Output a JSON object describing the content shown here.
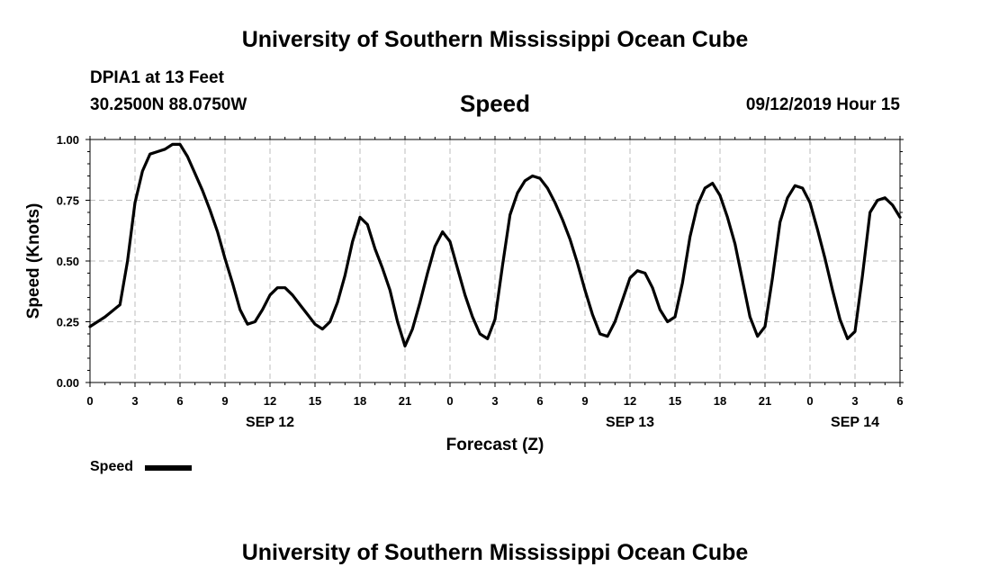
{
  "header": {
    "title": "University of Southern Mississippi Ocean Cube",
    "station": "DPIA1 at 13 Feet",
    "coords": "30.2500N 88.0750W",
    "timestamp": "09/12/2019 Hour 15"
  },
  "footer": {
    "title": "University of Southern Mississippi Ocean Cube"
  },
  "chart_data": {
    "type": "line",
    "title": "Speed",
    "xlabel": "Forecast (Z)",
    "ylabel": "Speed (Knots)",
    "ylim": [
      0,
      1
    ],
    "yticks": [
      "0.00",
      "0.25",
      "0.50",
      "0.75",
      "1.00"
    ],
    "xlim": [
      0,
      54
    ],
    "xticks": [
      "0",
      "3",
      "6",
      "9",
      "12",
      "15",
      "18",
      "21",
      "0",
      "3",
      "6",
      "9",
      "12",
      "15",
      "18",
      "21",
      "0",
      "3",
      "6"
    ],
    "date_labels": [
      {
        "label": "SEP 12",
        "hour": 12
      },
      {
        "label": "SEP 13",
        "hour": 36
      },
      {
        "label": "SEP 14",
        "hour": 51
      }
    ],
    "grid": true,
    "legend": "bottom-left",
    "series": [
      {
        "name": "Speed",
        "color": "#000000",
        "x": [
          0,
          1,
          2,
          2.5,
          3,
          3.5,
          4,
          4.5,
          5,
          5.5,
          6,
          6.5,
          7,
          7.5,
          8,
          8.5,
          9,
          9.5,
          10,
          10.5,
          11,
          11.5,
          12,
          12.5,
          13,
          13.5,
          14,
          14.5,
          15,
          15.5,
          16,
          16.5,
          17,
          17.5,
          18,
          18.5,
          19,
          19.5,
          20,
          20.5,
          21,
          21.5,
          22,
          22.5,
          23,
          23.5,
          24,
          24.5,
          25,
          25.5,
          26,
          26.5,
          27,
          27.5,
          28,
          28.5,
          29,
          29.5,
          30,
          30.5,
          31,
          31.5,
          32,
          32.5,
          33,
          33.5,
          34,
          34.5,
          35,
          35.5,
          36,
          36.5,
          37,
          37.5,
          38,
          38.5,
          39,
          39.5,
          40,
          40.5,
          41,
          41.5,
          42,
          42.5,
          43,
          43.5,
          44,
          44.5,
          45,
          45.5,
          46,
          46.5,
          47,
          47.5,
          48,
          48.5,
          49,
          49.5,
          50,
          50.5,
          51,
          51.5,
          52,
          52.5,
          53,
          53.5,
          54
        ],
        "values": [
          0.23,
          0.27,
          0.32,
          0.5,
          0.74,
          0.87,
          0.94,
          0.95,
          0.96,
          0.98,
          0.98,
          0.93,
          0.86,
          0.79,
          0.71,
          0.62,
          0.51,
          0.41,
          0.3,
          0.24,
          0.25,
          0.3,
          0.36,
          0.39,
          0.39,
          0.36,
          0.32,
          0.28,
          0.24,
          0.22,
          0.25,
          0.33,
          0.44,
          0.58,
          0.68,
          0.65,
          0.55,
          0.47,
          0.38,
          0.25,
          0.15,
          0.22,
          0.33,
          0.45,
          0.56,
          0.62,
          0.58,
          0.47,
          0.36,
          0.27,
          0.2,
          0.18,
          0.26,
          0.48,
          0.69,
          0.78,
          0.83,
          0.85,
          0.84,
          0.8,
          0.74,
          0.67,
          0.59,
          0.49,
          0.38,
          0.28,
          0.2,
          0.19,
          0.25,
          0.34,
          0.43,
          0.46,
          0.45,
          0.39,
          0.3,
          0.25,
          0.27,
          0.41,
          0.6,
          0.73,
          0.8,
          0.82,
          0.77,
          0.68,
          0.57,
          0.42,
          0.27,
          0.19,
          0.23,
          0.43,
          0.66,
          0.76,
          0.81,
          0.8,
          0.74,
          0.63,
          0.51,
          0.38,
          0.26,
          0.18,
          0.21,
          0.44,
          0.7,
          0.75,
          0.76,
          0.73,
          0.68
        ]
      }
    ]
  }
}
